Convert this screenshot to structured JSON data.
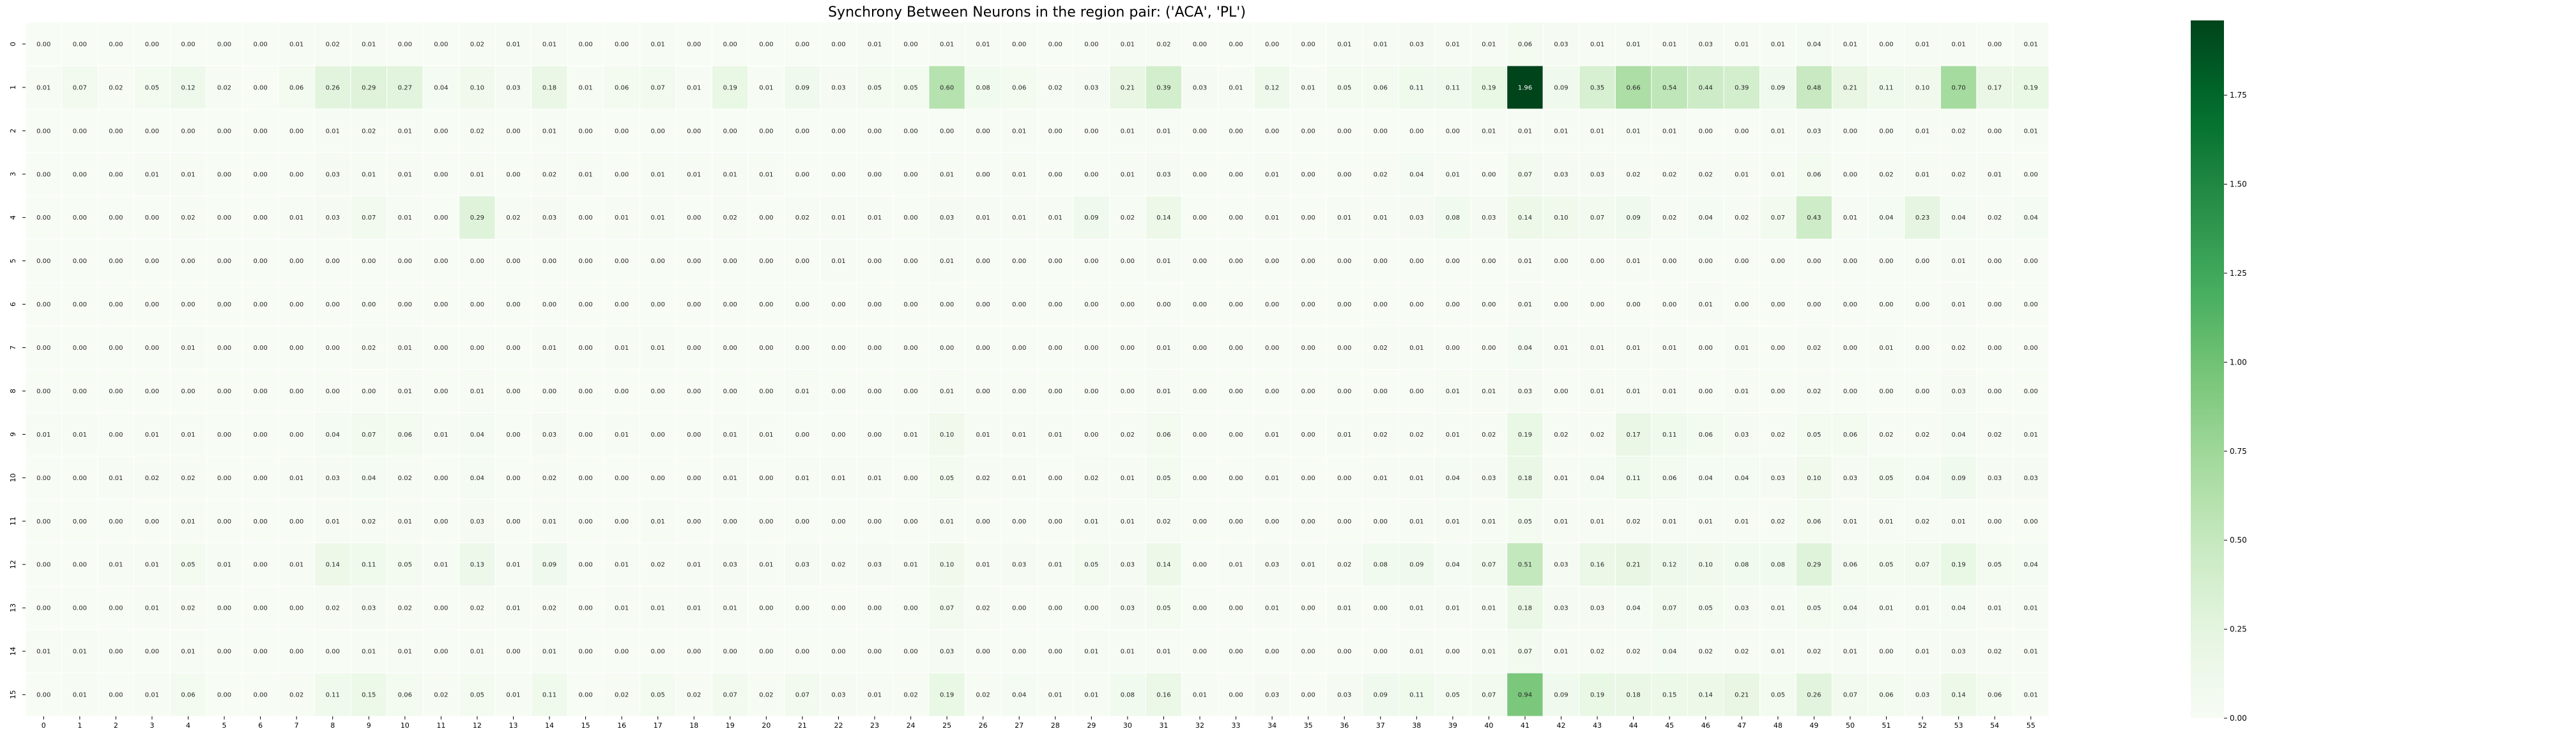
{
  "chart_data": {
    "type": "heatmap",
    "title": "Synchrony Between Neurons in the region pair: ('ACA', 'PL')",
    "xlabel": "",
    "ylabel": "",
    "x_categories": [
      "0",
      "1",
      "2",
      "3",
      "4",
      "5",
      "6",
      "7",
      "8",
      "9",
      "10",
      "11",
      "12",
      "13",
      "14",
      "15",
      "16",
      "17",
      "18",
      "19",
      "20",
      "21",
      "22",
      "23",
      "24",
      "25",
      "26",
      "27",
      "28",
      "29",
      "30",
      "31",
      "32",
      "33",
      "34",
      "35",
      "36",
      "37",
      "38",
      "39",
      "40",
      "41",
      "42",
      "43",
      "44",
      "45",
      "46",
      "47",
      "48",
      "49",
      "50",
      "51",
      "52",
      "53",
      "54",
      "55"
    ],
    "y_categories": [
      "0",
      "1",
      "2",
      "3",
      "4",
      "5",
      "6",
      "7",
      "8",
      "9",
      "10",
      "11",
      "12",
      "13",
      "14",
      "15"
    ],
    "values": [
      [
        0.0,
        0.0,
        0.0,
        0.0,
        0.0,
        0.0,
        0.0,
        0.01,
        0.02,
        0.01,
        0.0,
        0.0,
        0.02,
        0.01,
        0.01,
        0.0,
        0.0,
        0.01,
        0.0,
        0.0,
        0.0,
        0.0,
        0.0,
        0.01,
        0.0,
        0.01,
        0.01,
        0.0,
        0.0,
        0.0,
        0.01,
        0.02,
        0.0,
        0.0,
        0.0,
        0.0,
        0.01,
        0.01,
        0.03,
        0.01,
        0.01,
        0.06,
        0.03,
        0.01,
        0.01,
        0.01,
        0.03,
        0.01,
        0.01,
        0.04,
        0.01,
        0.0,
        0.01,
        0.01,
        0.0,
        0.01
      ],
      [
        0.01,
        0.07,
        0.02,
        0.05,
        0.12,
        0.02,
        0.0,
        0.06,
        0.26,
        0.29,
        0.27,
        0.04,
        0.1,
        0.03,
        0.18,
        0.01,
        0.06,
        0.07,
        0.01,
        0.19,
        0.01,
        0.09,
        0.03,
        0.05,
        0.05,
        0.6,
        0.08,
        0.06,
        0.02,
        0.03,
        0.21,
        0.39,
        0.03,
        0.01,
        0.12,
        0.01,
        0.05,
        0.06,
        0.11,
        0.11,
        0.19,
        1.96,
        0.09,
        0.35,
        0.66,
        0.54,
        0.44,
        0.39,
        0.09,
        0.48,
        0.21,
        0.11,
        0.1,
        0.7,
        0.17,
        0.19
      ],
      [
        0.0,
        0.0,
        0.0,
        0.0,
        0.0,
        0.0,
        0.0,
        0.0,
        0.01,
        0.02,
        0.01,
        0.0,
        0.02,
        0.0,
        0.01,
        0.0,
        0.0,
        0.0,
        0.0,
        0.0,
        0.0,
        0.0,
        0.0,
        0.0,
        0.0,
        0.0,
        0.0,
        0.01,
        0.0,
        0.0,
        0.01,
        0.01,
        0.0,
        0.0,
        0.0,
        0.0,
        0.0,
        0.0,
        0.0,
        0.0,
        0.01,
        0.01,
        0.01,
        0.01,
        0.01,
        0.01,
        0.0,
        0.0,
        0.01,
        0.03,
        0.0,
        0.0,
        0.01,
        0.02,
        0.0,
        0.01
      ],
      [
        0.0,
        0.0,
        0.0,
        0.01,
        0.01,
        0.0,
        0.0,
        0.0,
        0.03,
        0.01,
        0.01,
        0.0,
        0.01,
        0.0,
        0.02,
        0.01,
        0.0,
        0.01,
        0.01,
        0.01,
        0.01,
        0.0,
        0.0,
        0.0,
        0.0,
        0.01,
        0.0,
        0.01,
        0.0,
        0.0,
        0.01,
        0.03,
        0.0,
        0.0,
        0.01,
        0.0,
        0.0,
        0.02,
        0.04,
        0.01,
        0.0,
        0.07,
        0.03,
        0.03,
        0.02,
        0.02,
        0.02,
        0.01,
        0.01,
        0.06,
        0.0,
        0.02,
        0.01,
        0.02,
        0.01,
        0.0
      ],
      [
        0.0,
        0.0,
        0.0,
        0.0,
        0.02,
        0.0,
        0.0,
        0.01,
        0.03,
        0.07,
        0.01,
        0.0,
        0.29,
        0.02,
        0.03,
        0.0,
        0.01,
        0.01,
        0.0,
        0.02,
        0.0,
        0.02,
        0.01,
        0.01,
        0.0,
        0.03,
        0.01,
        0.01,
        0.01,
        0.09,
        0.02,
        0.14,
        0.0,
        0.0,
        0.01,
        0.0,
        0.01,
        0.01,
        0.03,
        0.08,
        0.03,
        0.14,
        0.1,
        0.07,
        0.09,
        0.02,
        0.04,
        0.02,
        0.07,
        0.43,
        0.01,
        0.04,
        0.23,
        0.04,
        0.02,
        0.04
      ],
      [
        0.0,
        0.0,
        0.0,
        0.0,
        0.0,
        0.0,
        0.0,
        0.0,
        0.0,
        0.0,
        0.0,
        0.0,
        0.0,
        0.0,
        0.0,
        0.0,
        0.0,
        0.0,
        0.0,
        0.0,
        0.0,
        0.0,
        0.01,
        0.0,
        0.0,
        0.01,
        0.0,
        0.0,
        0.0,
        0.0,
        0.0,
        0.01,
        0.0,
        0.0,
        0.0,
        0.0,
        0.0,
        0.0,
        0.0,
        0.0,
        0.0,
        0.01,
        0.0,
        0.0,
        0.01,
        0.0,
        0.0,
        0.0,
        0.0,
        0.0,
        0.0,
        0.0,
        0.0,
        0.01,
        0.0,
        0.0
      ],
      [
        0.0,
        0.0,
        0.0,
        0.0,
        0.0,
        0.0,
        0.0,
        0.0,
        0.0,
        0.0,
        0.0,
        0.0,
        0.0,
        0.0,
        0.0,
        0.0,
        0.0,
        0.0,
        0.0,
        0.0,
        0.0,
        0.0,
        0.0,
        0.0,
        0.0,
        0.0,
        0.0,
        0.0,
        0.0,
        0.0,
        0.0,
        0.0,
        0.0,
        0.0,
        0.0,
        0.0,
        0.0,
        0.0,
        0.0,
        0.0,
        0.0,
        0.01,
        0.0,
        0.0,
        0.0,
        0.0,
        0.01,
        0.0,
        0.0,
        0.0,
        0.0,
        0.0,
        0.0,
        0.01,
        0.0,
        0.0
      ],
      [
        0.0,
        0.0,
        0.0,
        0.0,
        0.01,
        0.0,
        0.0,
        0.0,
        0.0,
        0.02,
        0.01,
        0.0,
        0.0,
        0.0,
        0.01,
        0.0,
        0.01,
        0.01,
        0.0,
        0.0,
        0.0,
        0.0,
        0.0,
        0.0,
        0.0,
        0.0,
        0.0,
        0.0,
        0.0,
        0.0,
        0.0,
        0.01,
        0.0,
        0.0,
        0.0,
        0.0,
        0.0,
        0.02,
        0.01,
        0.0,
        0.0,
        0.04,
        0.01,
        0.01,
        0.01,
        0.01,
        0.0,
        0.01,
        0.0,
        0.02,
        0.0,
        0.01,
        0.0,
        0.02,
        0.0,
        0.0
      ],
      [
        0.0,
        0.0,
        0.0,
        0.0,
        0.0,
        0.0,
        0.0,
        0.0,
        0.0,
        0.0,
        0.01,
        0.0,
        0.01,
        0.0,
        0.0,
        0.0,
        0.0,
        0.0,
        0.0,
        0.0,
        0.0,
        0.01,
        0.0,
        0.0,
        0.0,
        0.01,
        0.0,
        0.0,
        0.0,
        0.0,
        0.0,
        0.01,
        0.0,
        0.0,
        0.0,
        0.0,
        0.0,
        0.0,
        0.0,
        0.01,
        0.01,
        0.03,
        0.0,
        0.01,
        0.01,
        0.01,
        0.0,
        0.01,
        0.0,
        0.02,
        0.0,
        0.0,
        0.0,
        0.03,
        0.0,
        0.0
      ],
      [
        0.01,
        0.01,
        0.0,
        0.01,
        0.01,
        0.0,
        0.0,
        0.0,
        0.04,
        0.07,
        0.06,
        0.01,
        0.04,
        0.0,
        0.03,
        0.0,
        0.01,
        0.0,
        0.0,
        0.01,
        0.01,
        0.0,
        0.0,
        0.0,
        0.01,
        0.1,
        0.01,
        0.01,
        0.01,
        0.0,
        0.02,
        0.06,
        0.0,
        0.0,
        0.01,
        0.0,
        0.01,
        0.02,
        0.02,
        0.01,
        0.02,
        0.19,
        0.02,
        0.02,
        0.17,
        0.11,
        0.06,
        0.03,
        0.02,
        0.05,
        0.06,
        0.02,
        0.02,
        0.04,
        0.02,
        0.01
      ],
      [
        0.0,
        0.0,
        0.01,
        0.02,
        0.02,
        0.0,
        0.0,
        0.01,
        0.03,
        0.04,
        0.02,
        0.0,
        0.04,
        0.0,
        0.02,
        0.0,
        0.0,
        0.0,
        0.0,
        0.01,
        0.0,
        0.01,
        0.01,
        0.01,
        0.0,
        0.05,
        0.02,
        0.01,
        0.0,
        0.02,
        0.01,
        0.05,
        0.0,
        0.0,
        0.01,
        0.0,
        0.0,
        0.01,
        0.01,
        0.04,
        0.03,
        0.18,
        0.01,
        0.04,
        0.11,
        0.06,
        0.04,
        0.04,
        0.03,
        0.1,
        0.03,
        0.05,
        0.04,
        0.09,
        0.03,
        0.03
      ],
      [
        0.0,
        0.0,
        0.0,
        0.0,
        0.01,
        0.0,
        0.0,
        0.0,
        0.01,
        0.02,
        0.01,
        0.0,
        0.03,
        0.0,
        0.01,
        0.0,
        0.0,
        0.01,
        0.0,
        0.0,
        0.0,
        0.0,
        0.0,
        0.0,
        0.0,
        0.01,
        0.0,
        0.0,
        0.0,
        0.01,
        0.01,
        0.02,
        0.0,
        0.0,
        0.0,
        0.0,
        0.0,
        0.0,
        0.01,
        0.01,
        0.01,
        0.05,
        0.01,
        0.01,
        0.02,
        0.01,
        0.01,
        0.01,
        0.02,
        0.06,
        0.01,
        0.01,
        0.02,
        0.01,
        0.0,
        0.0
      ],
      [
        0.0,
        0.0,
        0.01,
        0.01,
        0.05,
        0.01,
        0.0,
        0.01,
        0.14,
        0.11,
        0.05,
        0.01,
        0.13,
        0.01,
        0.09,
        0.0,
        0.01,
        0.02,
        0.01,
        0.03,
        0.01,
        0.03,
        0.02,
        0.03,
        0.01,
        0.1,
        0.01,
        0.03,
        0.01,
        0.05,
        0.03,
        0.14,
        0.0,
        0.01,
        0.03,
        0.01,
        0.02,
        0.08,
        0.09,
        0.04,
        0.07,
        0.51,
        0.03,
        0.16,
        0.21,
        0.12,
        0.1,
        0.08,
        0.08,
        0.29,
        0.06,
        0.05,
        0.07,
        0.19,
        0.05,
        0.04
      ],
      [
        0.0,
        0.0,
        0.0,
        0.01,
        0.02,
        0.0,
        0.0,
        0.0,
        0.02,
        0.03,
        0.02,
        0.0,
        0.02,
        0.01,
        0.02,
        0.0,
        0.01,
        0.01,
        0.01,
        0.01,
        0.0,
        0.0,
        0.0,
        0.0,
        0.0,
        0.07,
        0.02,
        0.0,
        0.0,
        0.0,
        0.03,
        0.05,
        0.0,
        0.0,
        0.01,
        0.0,
        0.01,
        0.0,
        0.01,
        0.01,
        0.01,
        0.18,
        0.03,
        0.03,
        0.04,
        0.07,
        0.05,
        0.03,
        0.01,
        0.05,
        0.04,
        0.01,
        0.01,
        0.04,
        0.01,
        0.01
      ],
      [
        0.01,
        0.01,
        0.0,
        0.0,
        0.01,
        0.0,
        0.0,
        0.0,
        0.0,
        0.01,
        0.01,
        0.0,
        0.01,
        0.0,
        0.01,
        0.0,
        0.0,
        0.0,
        0.0,
        0.0,
        0.0,
        0.0,
        0.0,
        0.0,
        0.0,
        0.03,
        0.0,
        0.0,
        0.0,
        0.01,
        0.01,
        0.01,
        0.0,
        0.0,
        0.0,
        0.0,
        0.0,
        0.0,
        0.01,
        0.0,
        0.01,
        0.07,
        0.01,
        0.02,
        0.02,
        0.04,
        0.02,
        0.02,
        0.01,
        0.02,
        0.01,
        0.0,
        0.01,
        0.03,
        0.02,
        0.01
      ],
      [
        0.0,
        0.01,
        0.0,
        0.01,
        0.06,
        0.0,
        0.0,
        0.02,
        0.11,
        0.15,
        0.06,
        0.02,
        0.05,
        0.01,
        0.11,
        0.0,
        0.02,
        0.05,
        0.02,
        0.07,
        0.02,
        0.07,
        0.03,
        0.01,
        0.02,
        0.19,
        0.02,
        0.04,
        0.01,
        0.01,
        0.08,
        0.16,
        0.01,
        0.0,
        0.03,
        0.0,
        0.03,
        0.09,
        0.11,
        0.05,
        0.07,
        0.94,
        0.09,
        0.19,
        0.18,
        0.15,
        0.14,
        0.21,
        0.05,
        0.26,
        0.07,
        0.06,
        0.03,
        0.14,
        0.06,
        0.01
      ]
    ],
    "colormap": "Greens",
    "colors": {
      "low": "#f7fcf5",
      "high": "#00441b"
    },
    "value_range": [
      0,
      1.96
    ],
    "colorbar_ticks": [
      "0.00",
      "0.25",
      "0.50",
      "0.75",
      "1.00",
      "1.25",
      "1.50",
      "1.75"
    ],
    "colorbar_tick_values": [
      0,
      0.25,
      0.5,
      0.75,
      1.0,
      1.25,
      1.5,
      1.75
    ],
    "annotate_cells": true
  }
}
